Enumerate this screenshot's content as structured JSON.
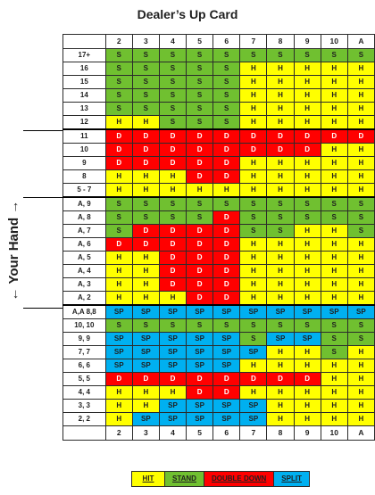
{
  "title": "Dealer’s Up Card",
  "side_label": "← Your Hand →",
  "columns": [
    "2",
    "3",
    "4",
    "5",
    "6",
    "7",
    "8",
    "9",
    "10",
    "A"
  ],
  "colors": {
    "S": "#70c030",
    "H": "#ffff00",
    "D": "#ff0000",
    "SP": "#00b0f0"
  },
  "rows": [
    {
      "label": "17+",
      "cells": [
        "S",
        "S",
        "S",
        "S",
        "S",
        "S",
        "S",
        "S",
        "S",
        "S"
      ]
    },
    {
      "label": "16",
      "cells": [
        "S",
        "S",
        "S",
        "S",
        "S",
        "H",
        "H",
        "H",
        "H",
        "H"
      ]
    },
    {
      "label": "15",
      "cells": [
        "S",
        "S",
        "S",
        "S",
        "S",
        "H",
        "H",
        "H",
        "H",
        "H"
      ]
    },
    {
      "label": "14",
      "cells": [
        "S",
        "S",
        "S",
        "S",
        "S",
        "H",
        "H",
        "H",
        "H",
        "H"
      ]
    },
    {
      "label": "13",
      "cells": [
        "S",
        "S",
        "S",
        "S",
        "S",
        "H",
        "H",
        "H",
        "H",
        "H"
      ]
    },
    {
      "label": "12",
      "cells": [
        "H",
        "H",
        "S",
        "S",
        "S",
        "H",
        "H",
        "H",
        "H",
        "H"
      ]
    },
    {
      "label": "11",
      "cells": [
        "D",
        "D",
        "D",
        "D",
        "D",
        "D",
        "D",
        "D",
        "D",
        "D"
      ]
    },
    {
      "label": "10",
      "cells": [
        "D",
        "D",
        "D",
        "D",
        "D",
        "D",
        "D",
        "D",
        "H",
        "H"
      ]
    },
    {
      "label": "9",
      "cells": [
        "D",
        "D",
        "D",
        "D",
        "D",
        "H",
        "H",
        "H",
        "H",
        "H"
      ]
    },
    {
      "label": "8",
      "cells": [
        "H",
        "H",
        "H",
        "D",
        "D",
        "H",
        "H",
        "H",
        "H",
        "H"
      ]
    },
    {
      "label": "5 - 7",
      "cells": [
        "H",
        "H",
        "H",
        "H",
        "H",
        "H",
        "H",
        "H",
        "H",
        "H"
      ]
    },
    {
      "label": "A, 9",
      "cells": [
        "S",
        "S",
        "S",
        "S",
        "S",
        "S",
        "S",
        "S",
        "S",
        "S"
      ]
    },
    {
      "label": "A, 8",
      "cells": [
        "S",
        "S",
        "S",
        "S",
        "D",
        "S",
        "S",
        "S",
        "S",
        "S"
      ]
    },
    {
      "label": "A, 7",
      "cells": [
        "S",
        "D",
        "D",
        "D",
        "D",
        "S",
        "S",
        "H",
        "H",
        "S"
      ]
    },
    {
      "label": "A, 6",
      "cells": [
        "D",
        "D",
        "D",
        "D",
        "D",
        "H",
        "H",
        "H",
        "H",
        "H"
      ]
    },
    {
      "label": "A, 5",
      "cells": [
        "H",
        "H",
        "D",
        "D",
        "D",
        "H",
        "H",
        "H",
        "H",
        "H"
      ]
    },
    {
      "label": "A, 4",
      "cells": [
        "H",
        "H",
        "D",
        "D",
        "D",
        "H",
        "H",
        "H",
        "H",
        "H"
      ]
    },
    {
      "label": "A, 3",
      "cells": [
        "H",
        "H",
        "D",
        "D",
        "D",
        "H",
        "H",
        "H",
        "H",
        "H"
      ]
    },
    {
      "label": "A, 2",
      "cells": [
        "H",
        "H",
        "H",
        "D",
        "D",
        "H",
        "H",
        "H",
        "H",
        "H"
      ]
    },
    {
      "label": "A,A 8,8",
      "cells": [
        "SP",
        "SP",
        "SP",
        "SP",
        "SP",
        "SP",
        "SP",
        "SP",
        "SP",
        "SP"
      ]
    },
    {
      "label": "10, 10",
      "cells": [
        "S",
        "S",
        "S",
        "S",
        "S",
        "S",
        "S",
        "S",
        "S",
        "S"
      ]
    },
    {
      "label": "9, 9",
      "cells": [
        "SP",
        "SP",
        "SP",
        "SP",
        "SP",
        "S",
        "SP",
        "SP",
        "S",
        "S"
      ]
    },
    {
      "label": "7, 7",
      "cells": [
        "SP",
        "SP",
        "SP",
        "SP",
        "SP",
        "SP",
        "H",
        "H",
        "S",
        "H"
      ]
    },
    {
      "label": "6, 6",
      "cells": [
        "SP",
        "SP",
        "SP",
        "SP",
        "SP",
        "H",
        "H",
        "H",
        "H",
        "H"
      ]
    },
    {
      "label": "5, 5",
      "cells": [
        "D",
        "D",
        "D",
        "D",
        "D",
        "D",
        "D",
        "D",
        "H",
        "H"
      ]
    },
    {
      "label": "4, 4",
      "cells": [
        "H",
        "H",
        "H",
        "D",
        "D",
        "H",
        "H",
        "H",
        "H",
        "H"
      ]
    },
    {
      "label": "3, 3",
      "cells": [
        "H",
        "H",
        "SP",
        "SP",
        "SP",
        "SP",
        "H",
        "H",
        "H",
        "H"
      ]
    },
    {
      "label": "2, 2",
      "cells": [
        "H",
        "SP",
        "SP",
        "SP",
        "SP",
        "SP",
        "H",
        "H",
        "H",
        "H"
      ]
    }
  ],
  "legend": {
    "hit": "HIT",
    "stand": "STAND",
    "double": "DOUBLE DOWN",
    "split": "SPLIT"
  }
}
